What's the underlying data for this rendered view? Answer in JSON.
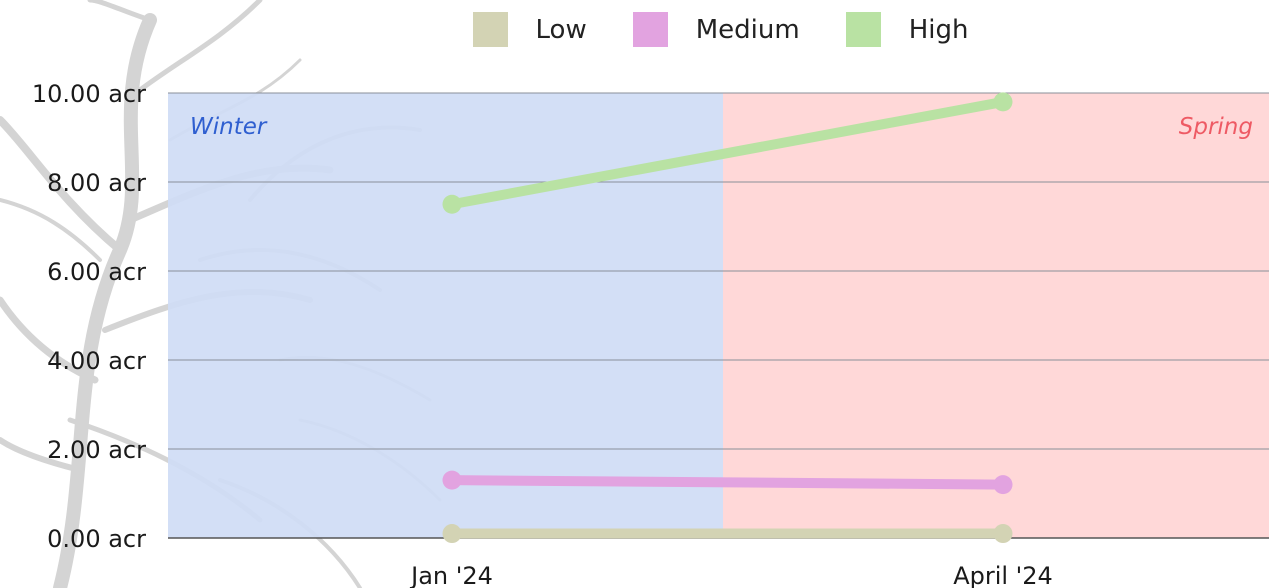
{
  "chart_data": {
    "type": "line",
    "title": "",
    "xlabel": "",
    "ylabel": "",
    "x": [
      "Jan '24",
      "April '24"
    ],
    "ylim": [
      0,
      10
    ],
    "y_ticks": [
      "0.00 acr",
      "2.00 acr",
      "4.00 acr",
      "6.00 acr",
      "8.00 acr",
      "10.00 acr"
    ],
    "grid": true,
    "legend_position": "top",
    "series": [
      {
        "name": "Low",
        "color": "#d3d3b4",
        "values": [
          0.1,
          0.1
        ]
      },
      {
        "name": "Medium",
        "color": "#e2a3e0",
        "values": [
          1.3,
          1.2
        ]
      },
      {
        "name": "High",
        "color": "#b9e2a3",
        "values": [
          7.5,
          9.8
        ]
      }
    ],
    "bands": [
      {
        "label": "Winter",
        "from": "start",
        "to": "mid",
        "fill": "#cfdcf5",
        "text_color": "#2f5fd0"
      },
      {
        "label": "Spring",
        "from": "mid",
        "to": "end",
        "fill": "#ffd5d5",
        "text_color": "#ee5a64"
      }
    ]
  }
}
